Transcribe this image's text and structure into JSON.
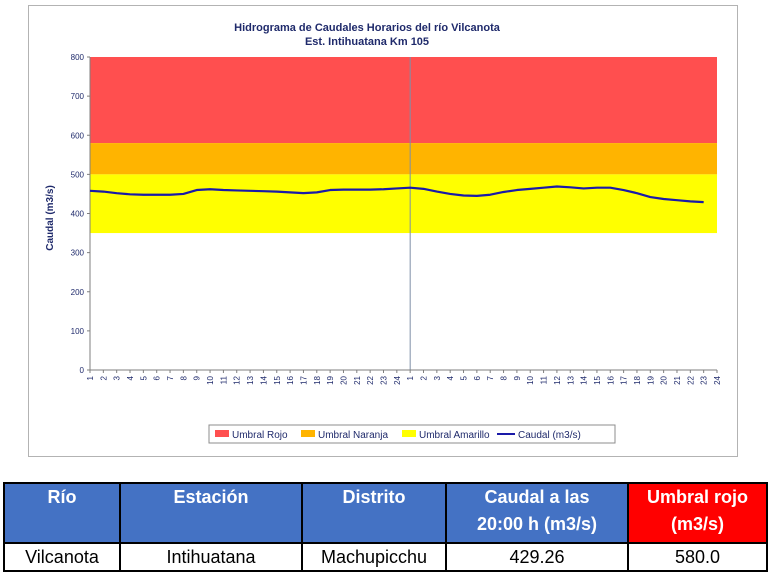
{
  "chart_data": {
    "type": "line",
    "title": "Hidrograma de Caudales Horarios del río Vilcanota",
    "subtitle": "Est. Intihuatana Km 105",
    "ylabel": "Caudal (m3/s)",
    "xlabel": "",
    "ylim": [
      0,
      800
    ],
    "yticks": [
      0,
      100,
      200,
      300,
      400,
      500,
      600,
      700,
      800
    ],
    "x_tick_labels": [
      "1",
      "2",
      "3",
      "4",
      "5",
      "6",
      "7",
      "8",
      "9",
      "10",
      "11",
      "12",
      "13",
      "14",
      "15",
      "16",
      "17",
      "18",
      "19",
      "20",
      "21",
      "22",
      "23",
      "24",
      "1",
      "2",
      "3",
      "4",
      "5",
      "6",
      "7",
      "8",
      "9",
      "10",
      "11",
      "12",
      "13",
      "14",
      "15",
      "16",
      "17",
      "18",
      "19",
      "20",
      "21",
      "22",
      "23",
      "24"
    ],
    "bands": [
      {
        "name": "Umbral Rojo",
        "from": 580,
        "to": 800,
        "color": "#ff4f4f"
      },
      {
        "name": "Umbral Naranja",
        "from": 500,
        "to": 580,
        "color": "#ffb400"
      },
      {
        "name": "Umbral Amarillo",
        "from": 350,
        "to": 500,
        "color": "#ffff00"
      }
    ],
    "series": [
      {
        "name": "Caudal (m3/s)",
        "color": "#1a1aa8",
        "values": [
          458,
          456,
          452,
          449,
          448,
          448,
          448,
          450,
          460,
          462,
          460,
          459,
          458,
          457,
          456,
          454,
          452,
          454,
          460,
          461,
          461,
          461,
          462,
          464,
          466,
          463,
          456,
          450,
          446,
          445,
          448,
          455,
          460,
          463,
          466,
          469,
          467,
          464,
          466,
          466,
          460,
          452,
          442,
          437,
          434,
          431,
          429
        ]
      }
    ],
    "legend_position": "bottom",
    "divider_after": 24,
    "grid": false
  },
  "table": {
    "headers": [
      {
        "line1": "Río",
        "line2": ""
      },
      {
        "line1": "Estación",
        "line2": ""
      },
      {
        "line1": "Distrito",
        "line2": ""
      },
      {
        "line1": "Caudal a las",
        "line2": "20:00 h (m3/s)"
      },
      {
        "line1": "Umbral rojo",
        "line2": "(m3/s)"
      }
    ],
    "row": {
      "rio": "Vilcanota",
      "estacion": "Intihuatana",
      "distrito": "Machupicchu",
      "caudal": "429.26",
      "umbral": "580.0"
    }
  }
}
